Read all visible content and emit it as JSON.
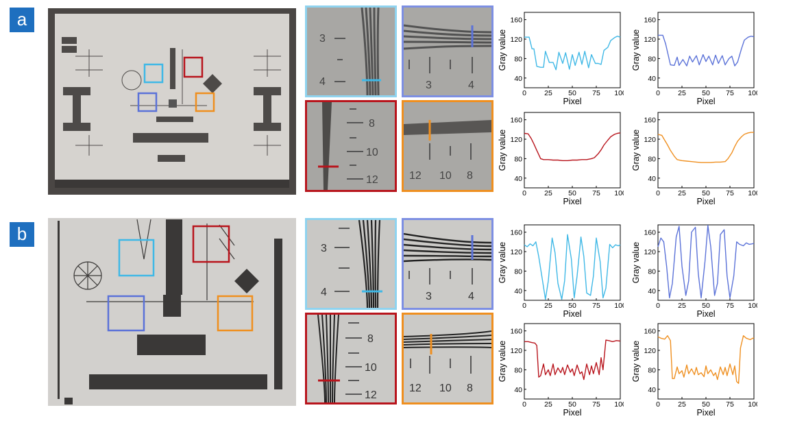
{
  "panels": {
    "a": {
      "label": "a"
    },
    "b": {
      "label": "b"
    }
  },
  "colors": {
    "cyan": "#3fb8e6",
    "blue": "#5b72d8",
    "red": "#b8141c",
    "orange": "#ef8f1f",
    "tag": "#1e6fbf"
  },
  "zoom_labels": {
    "cyan": [
      "3",
      "4"
    ],
    "blue": [
      "3",
      "4"
    ],
    "red": [
      "8",
      "10",
      "12"
    ],
    "orange": [
      "12",
      "10",
      "8"
    ]
  },
  "chart_data": [
    {
      "panel": "a",
      "color_key": "cyan",
      "type": "line",
      "xlabel": "Pixel",
      "ylabel": "Gray value",
      "xlim": [
        0,
        100
      ],
      "ylim": [
        20,
        175
      ],
      "xticks": [
        0,
        25,
        50,
        75,
        100
      ],
      "yticks": [
        40,
        80,
        120,
        160
      ],
      "x": [
        0,
        5,
        8,
        10,
        13,
        17,
        20,
        22,
        26,
        30,
        33,
        36,
        40,
        43,
        47,
        50,
        53,
        57,
        60,
        63,
        67,
        70,
        74,
        77,
        80,
        83,
        87,
        90,
        94,
        97,
        100
      ],
      "y": [
        124,
        124,
        100,
        100,
        64,
        62,
        62,
        95,
        72,
        72,
        57,
        93,
        70,
        92,
        58,
        88,
        66,
        93,
        68,
        95,
        61,
        88,
        70,
        70,
        68,
        97,
        103,
        117,
        123,
        126,
        124
      ]
    },
    {
      "panel": "a",
      "color_key": "blue",
      "type": "line",
      "xlabel": "Pixel",
      "ylabel": "Gray value",
      "xlim": [
        0,
        100
      ],
      "ylim": [
        20,
        175
      ],
      "xticks": [
        0,
        25,
        50,
        75,
        100
      ],
      "yticks": [
        40,
        80,
        120,
        160
      ],
      "x": [
        0,
        5,
        8,
        13,
        17,
        20,
        22,
        26,
        30,
        33,
        36,
        40,
        43,
        47,
        50,
        53,
        57,
        60,
        63,
        67,
        70,
        74,
        77,
        80,
        83,
        87,
        90,
        94,
        97,
        100
      ],
      "y": [
        128,
        128,
        110,
        67,
        66,
        83,
        66,
        78,
        65,
        85,
        73,
        86,
        67,
        88,
        74,
        85,
        67,
        87,
        70,
        86,
        67,
        80,
        85,
        65,
        73,
        100,
        118,
        124,
        126,
        125
      ]
    },
    {
      "panel": "a",
      "color_key": "red",
      "type": "line",
      "xlabel": "Pixel",
      "ylabel": "Gray value",
      "xlim": [
        0,
        100
      ],
      "ylim": [
        20,
        175
      ],
      "xticks": [
        0,
        25,
        50,
        75,
        100
      ],
      "yticks": [
        40,
        80,
        120,
        160
      ],
      "x": [
        0,
        4,
        7,
        10,
        13,
        17,
        20,
        25,
        30,
        35,
        40,
        45,
        50,
        55,
        60,
        65,
        70,
        73,
        77,
        80,
        83,
        87,
        90,
        94,
        97,
        100
      ],
      "y": [
        132,
        131,
        122,
        110,
        97,
        80,
        78,
        78,
        77,
        77,
        76,
        76,
        77,
        77,
        78,
        78,
        80,
        82,
        90,
        98,
        108,
        118,
        125,
        130,
        132,
        133
      ]
    },
    {
      "panel": "a",
      "color_key": "orange",
      "type": "line",
      "xlabel": "Pixel",
      "ylabel": "Gray value",
      "xlim": [
        0,
        100
      ],
      "ylim": [
        20,
        175
      ],
      "xticks": [
        0,
        25,
        50,
        75,
        100
      ],
      "yticks": [
        40,
        80,
        120,
        160
      ],
      "x": [
        0,
        4,
        7,
        10,
        13,
        17,
        20,
        25,
        30,
        35,
        40,
        45,
        50,
        55,
        60,
        65,
        70,
        73,
        77,
        80,
        83,
        87,
        90,
        94,
        97,
        100
      ],
      "y": [
        130,
        128,
        118,
        108,
        97,
        85,
        78,
        76,
        75,
        74,
        73,
        72,
        72,
        72,
        73,
        73,
        74,
        80,
        92,
        105,
        116,
        125,
        130,
        133,
        134,
        134
      ]
    },
    {
      "panel": "b",
      "color_key": "cyan",
      "type": "line",
      "xlabel": "Pixel",
      "ylabel": "Gray value",
      "xlim": [
        0,
        100
      ],
      "ylim": [
        20,
        175
      ],
      "xticks": [
        0,
        25,
        50,
        75,
        100
      ],
      "yticks": [
        40,
        80,
        120,
        160
      ],
      "x": [
        0,
        3,
        6,
        9,
        12,
        15,
        19,
        22,
        25,
        29,
        32,
        35,
        39,
        42,
        45,
        49,
        52,
        55,
        59,
        62,
        65,
        69,
        72,
        75,
        79,
        82,
        85,
        89,
        92,
        95,
        98,
        100
      ],
      "y": [
        134,
        130,
        136,
        132,
        140,
        110,
        60,
        22,
        60,
        148,
        118,
        55,
        22,
        60,
        155,
        105,
        25,
        70,
        150,
        110,
        35,
        30,
        70,
        148,
        100,
        25,
        45,
        135,
        128,
        134,
        132,
        134
      ]
    },
    {
      "panel": "b",
      "color_key": "blue",
      "type": "line",
      "xlabel": "Pixel",
      "ylabel": "Gray value",
      "xlim": [
        0,
        100
      ],
      "ylim": [
        20,
        175
      ],
      "xticks": [
        0,
        25,
        50,
        75,
        100
      ],
      "yticks": [
        40,
        80,
        120,
        160
      ],
      "x": [
        0,
        3,
        6,
        9,
        12,
        15,
        19,
        22,
        25,
        29,
        32,
        35,
        39,
        42,
        45,
        49,
        52,
        55,
        59,
        62,
        65,
        69,
        72,
        75,
        79,
        82,
        85,
        89,
        92,
        95,
        98,
        100
      ],
      "y": [
        130,
        148,
        140,
        90,
        25,
        55,
        150,
        172,
        90,
        30,
        60,
        160,
        170,
        75,
        25,
        100,
        174,
        130,
        30,
        55,
        155,
        165,
        70,
        25,
        70,
        140,
        135,
        132,
        138,
        135,
        136,
        137
      ]
    },
    {
      "panel": "b",
      "color_key": "red",
      "type": "line",
      "xlabel": "Pixel",
      "ylabel": "Gray value",
      "xlim": [
        0,
        100
      ],
      "ylim": [
        20,
        175
      ],
      "xticks": [
        0,
        25,
        50,
        75,
        100
      ],
      "yticks": [
        40,
        80,
        120,
        160
      ],
      "x": [
        0,
        4,
        8,
        11,
        13,
        15,
        17,
        20,
        22,
        25,
        27,
        30,
        32,
        35,
        38,
        40,
        42,
        45,
        48,
        50,
        52,
        55,
        58,
        60,
        62,
        65,
        68,
        70,
        72,
        75,
        78,
        80,
        82,
        85,
        88,
        92,
        96,
        100
      ],
      "y": [
        138,
        138,
        136,
        135,
        130,
        65,
        68,
        92,
        70,
        80,
        68,
        92,
        70,
        84,
        74,
        85,
        70,
        90,
        75,
        82,
        68,
        90,
        72,
        76,
        60,
        92,
        70,
        88,
        72,
        95,
        70,
        105,
        80,
        141,
        140,
        138,
        140,
        139
      ]
    },
    {
      "panel": "b",
      "color_key": "orange",
      "type": "line",
      "xlabel": "Pixel",
      "ylabel": "Gray value",
      "xlim": [
        0,
        100
      ],
      "ylim": [
        20,
        175
      ],
      "xticks": [
        0,
        25,
        50,
        75,
        100
      ],
      "yticks": [
        40,
        80,
        120,
        160
      ],
      "x": [
        0,
        3,
        7,
        10,
        13,
        15,
        17,
        20,
        22,
        25,
        27,
        30,
        32,
        35,
        38,
        40,
        42,
        45,
        48,
        50,
        52,
        55,
        58,
        60,
        62,
        65,
        68,
        70,
        72,
        75,
        78,
        80,
        82,
        84,
        86,
        89,
        92,
        96,
        100
      ],
      "y": [
        148,
        145,
        143,
        150,
        140,
        62,
        62,
        86,
        72,
        78,
        65,
        90,
        72,
        82,
        70,
        85,
        70,
        74,
        66,
        88,
        72,
        80,
        68,
        74,
        60,
        86,
        70,
        85,
        68,
        92,
        70,
        88,
        56,
        52,
        125,
        150,
        145,
        142,
        146
      ]
    }
  ]
}
